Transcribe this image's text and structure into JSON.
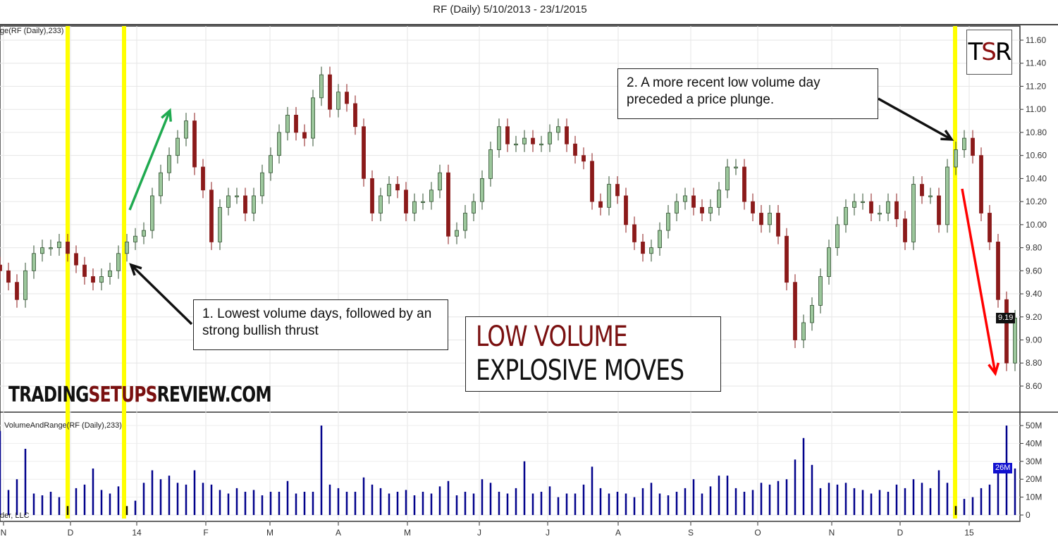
{
  "header": {
    "title": "RF (Daily)  5/10/2013 - 23/1/2015"
  },
  "price_pane": {
    "indicator_label": "ge(RF (Daily),233)",
    "last_price_label": "9.19"
  },
  "volume_pane": {
    "indicator_label": "VolumeAndRange(RF (Daily),233)",
    "copyright": "der, LLC",
    "last_volume_label": "26M"
  },
  "annotations": {
    "note1": "1. Lowest volume days, followed by an strong bullish  thrust",
    "note2": "2. A more recent low volume day preceded a price plunge.",
    "headline_line1": "LOW VOLUME",
    "headline_line2": "EXPLOSIVE MOVES"
  },
  "branding": {
    "watermark_a": "TRADING",
    "watermark_b": "SETUPS",
    "watermark_c": "REVIEW.COM",
    "logo_t": "T",
    "logo_s": "S",
    "logo_r": "R"
  },
  "colors": {
    "bull": "#9cc79c",
    "bull_edge": "#2f4f2f",
    "bear": "#8b1a1a",
    "volume": "#00008b",
    "highlight": "#ffff00",
    "up_arrow": "#1faa50",
    "down_arrow": "#ff0000",
    "accent": "#7a1010"
  },
  "chart_data": {
    "type": "candlestick",
    "title": "RF (Daily)  5/10/2013 - 23/1/2015",
    "x_tick_labels": [
      "N",
      "D",
      "14",
      "F",
      "M",
      "A",
      "M",
      "J",
      "J",
      "A",
      "S",
      "O",
      "N",
      "D",
      "15"
    ],
    "y_ticks": [
      "11.60",
      "11.40",
      "11.20",
      "11.00",
      "10.80",
      "10.60",
      "10.40",
      "10.20",
      "10.00",
      "9.80",
      "9.60",
      "9.40",
      "9.20",
      "9.00",
      "8.80",
      "8.60"
    ],
    "ylim": [
      8.6,
      11.6
    ],
    "grid": true,
    "close": [
      9.6,
      9.5,
      9.35,
      9.6,
      9.75,
      9.8,
      9.8,
      9.85,
      9.75,
      9.65,
      9.55,
      9.5,
      9.55,
      9.6,
      9.75,
      9.85,
      9.9,
      9.95,
      10.25,
      10.45,
      10.6,
      10.75,
      10.9,
      10.5,
      10.3,
      9.85,
      10.15,
      10.25,
      10.25,
      10.1,
      10.25,
      10.45,
      10.6,
      10.8,
      10.95,
      10.8,
      10.75,
      11.1,
      11.3,
      11.0,
      11.15,
      11.05,
      10.85,
      10.4,
      10.1,
      10.25,
      10.35,
      10.3,
      10.1,
      10.2,
      10.2,
      10.3,
      10.45,
      9.9,
      9.95,
      10.1,
      10.2,
      10.4,
      10.65,
      10.85,
      10.7,
      10.7,
      10.75,
      10.7,
      10.7,
      10.8,
      10.85,
      10.7,
      10.6,
      10.55,
      10.2,
      10.15,
      10.35,
      10.25,
      10.0,
      9.85,
      9.75,
      9.8,
      9.95,
      10.1,
      10.2,
      10.25,
      10.15,
      10.1,
      10.15,
      10.3,
      10.5,
      10.5,
      10.2,
      10.1,
      10.0,
      10.1,
      9.9,
      9.5,
      9.0,
      9.15,
      9.3,
      9.55,
      9.8,
      10.0,
      10.15,
      10.2,
      10.2,
      10.1,
      10.1,
      10.2,
      10.05,
      9.85,
      10.35,
      10.25,
      10.25,
      10.0,
      10.5,
      10.65,
      10.75,
      10.6,
      10.1,
      9.85,
      9.35,
      8.8,
      9.19
    ],
    "volume": {
      "y_ticks": [
        "50M",
        "40M",
        "30M",
        "20M",
        "10M",
        "0"
      ],
      "ylim": [
        0,
        50
      ],
      "values_millions": [
        47,
        14,
        20,
        37,
        12,
        11,
        13,
        10,
        5,
        15,
        17,
        26,
        14,
        12,
        16,
        5,
        8,
        18,
        25,
        20,
        22,
        18,
        17,
        25,
        18,
        17,
        14,
        12,
        15,
        13,
        14,
        11,
        13,
        13,
        19,
        12,
        13,
        13,
        50,
        17,
        15,
        13,
        13,
        21,
        17,
        15,
        12,
        13,
        14,
        11,
        13,
        12,
        16,
        19,
        11,
        13,
        12,
        20,
        18,
        13,
        12,
        15,
        30,
        12,
        13,
        16,
        10,
        12,
        12,
        17,
        27,
        15,
        12,
        13,
        12,
        10,
        15,
        18,
        12,
        11,
        13,
        15,
        20,
        12,
        16,
        22,
        22,
        15,
        13,
        14,
        18,
        17,
        19,
        20,
        31,
        43,
        28,
        15,
        18,
        17,
        18,
        15,
        14,
        12,
        14,
        13,
        17,
        15,
        20,
        18,
        15,
        25,
        18,
        5,
        9,
        10,
        15,
        17,
        25,
        50,
        26
      ]
    }
  }
}
